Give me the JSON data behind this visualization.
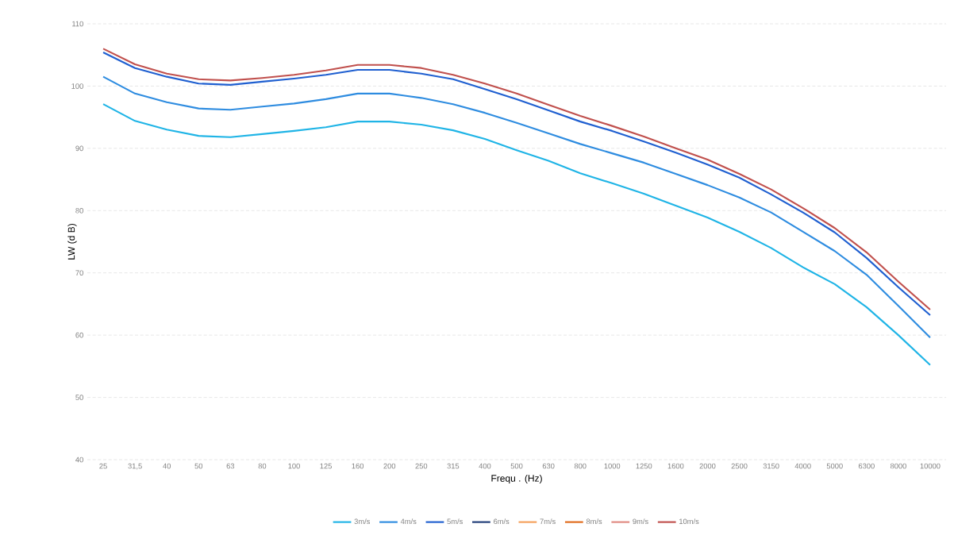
{
  "chart_data": {
    "type": "line",
    "xlabel": "Frequ . (Hz)",
    "ylabel": "LW (d B)",
    "categories": [
      "25",
      "31,5",
      "40",
      "50",
      "63",
      "80",
      "100",
      "125",
      "160",
      "200",
      "250",
      "315",
      "400",
      "500",
      "630",
      "800",
      "1000",
      "1250",
      "1600",
      "2000",
      "2500",
      "3150",
      "4000",
      "5000",
      "6300",
      "8000",
      "10000"
    ],
    "ylim": [
      40,
      110
    ],
    "yticks": [
      40,
      50,
      60,
      70,
      80,
      90,
      100,
      110
    ],
    "grid": "y",
    "legend": "bottom",
    "marker": "none",
    "line_style": "solid",
    "series": [
      {
        "name": "3m/s",
        "color": "#1fb4e6",
        "values": [
          97.1,
          94.4,
          93.0,
          92.0,
          91.8,
          92.3,
          92.8,
          93.4,
          94.3,
          94.3,
          93.8,
          92.9,
          91.5,
          89.7,
          88.0,
          86.0,
          84.4,
          82.7,
          80.8,
          78.9,
          76.6,
          74.0,
          70.9,
          68.2,
          64.5,
          60.0,
          55.2
        ]
      },
      {
        "name": "4m/s",
        "color": "#2e8ce0",
        "values": [
          101.5,
          98.8,
          97.4,
          96.4,
          96.2,
          96.7,
          97.2,
          97.9,
          98.8,
          98.8,
          98.1,
          97.1,
          95.7,
          94.1,
          92.4,
          90.7,
          89.2,
          87.7,
          85.9,
          84.1,
          82.1,
          79.7,
          76.6,
          73.5,
          69.7,
          64.7,
          59.6
        ]
      },
      {
        "name": "5m/s",
        "color": "#1f5fd0",
        "values": [
          105.4,
          102.9,
          101.5,
          100.4,
          100.2,
          100.7,
          101.2,
          101.8,
          102.6,
          102.6,
          102.0,
          101.1,
          99.5,
          97.9,
          96.1,
          94.3,
          92.8,
          91.1,
          89.3,
          87.4,
          85.3,
          82.6,
          79.7,
          76.5,
          72.4,
          67.7,
          63.2
        ]
      },
      {
        "name": "6m/s",
        "color": "#1f3c78",
        "values": [
          null,
          null,
          null,
          null,
          null,
          null,
          null,
          null,
          null,
          null,
          null,
          null,
          null,
          null,
          null,
          null,
          null,
          null,
          null,
          null,
          null,
          null,
          null,
          null,
          null,
          null,
          null
        ]
      },
      {
        "name": "7m/s",
        "color": "#f5a05a",
        "values": [
          null,
          null,
          null,
          null,
          null,
          null,
          null,
          null,
          null,
          null,
          null,
          null,
          null,
          null,
          null,
          null,
          null,
          null,
          null,
          null,
          null,
          null,
          null,
          null,
          null,
          null,
          null
        ]
      },
      {
        "name": "8m/s",
        "color": "#e06a1a",
        "values": [
          null,
          null,
          null,
          null,
          null,
          null,
          null,
          null,
          null,
          null,
          null,
          null,
          null,
          null,
          null,
          null,
          null,
          null,
          null,
          null,
          null,
          null,
          null,
          null,
          null,
          null,
          null
        ]
      },
      {
        "name": "9m/s",
        "color": "#e08a80",
        "values": [
          null,
          null,
          null,
          null,
          null,
          null,
          null,
          null,
          null,
          null,
          null,
          null,
          null,
          null,
          null,
          null,
          null,
          null,
          null,
          null,
          null,
          null,
          null,
          null,
          null,
          null,
          null
        ]
      },
      {
        "name": "10m/s",
        "color": "#c0504d",
        "values": [
          106.0,
          103.5,
          102.0,
          101.1,
          100.9,
          101.3,
          101.8,
          102.5,
          103.4,
          103.4,
          102.9,
          101.8,
          100.4,
          98.8,
          97.0,
          95.2,
          93.6,
          91.9,
          90.0,
          88.2,
          85.9,
          83.4,
          80.4,
          77.2,
          73.3,
          68.6,
          64.1
        ]
      }
    ]
  }
}
